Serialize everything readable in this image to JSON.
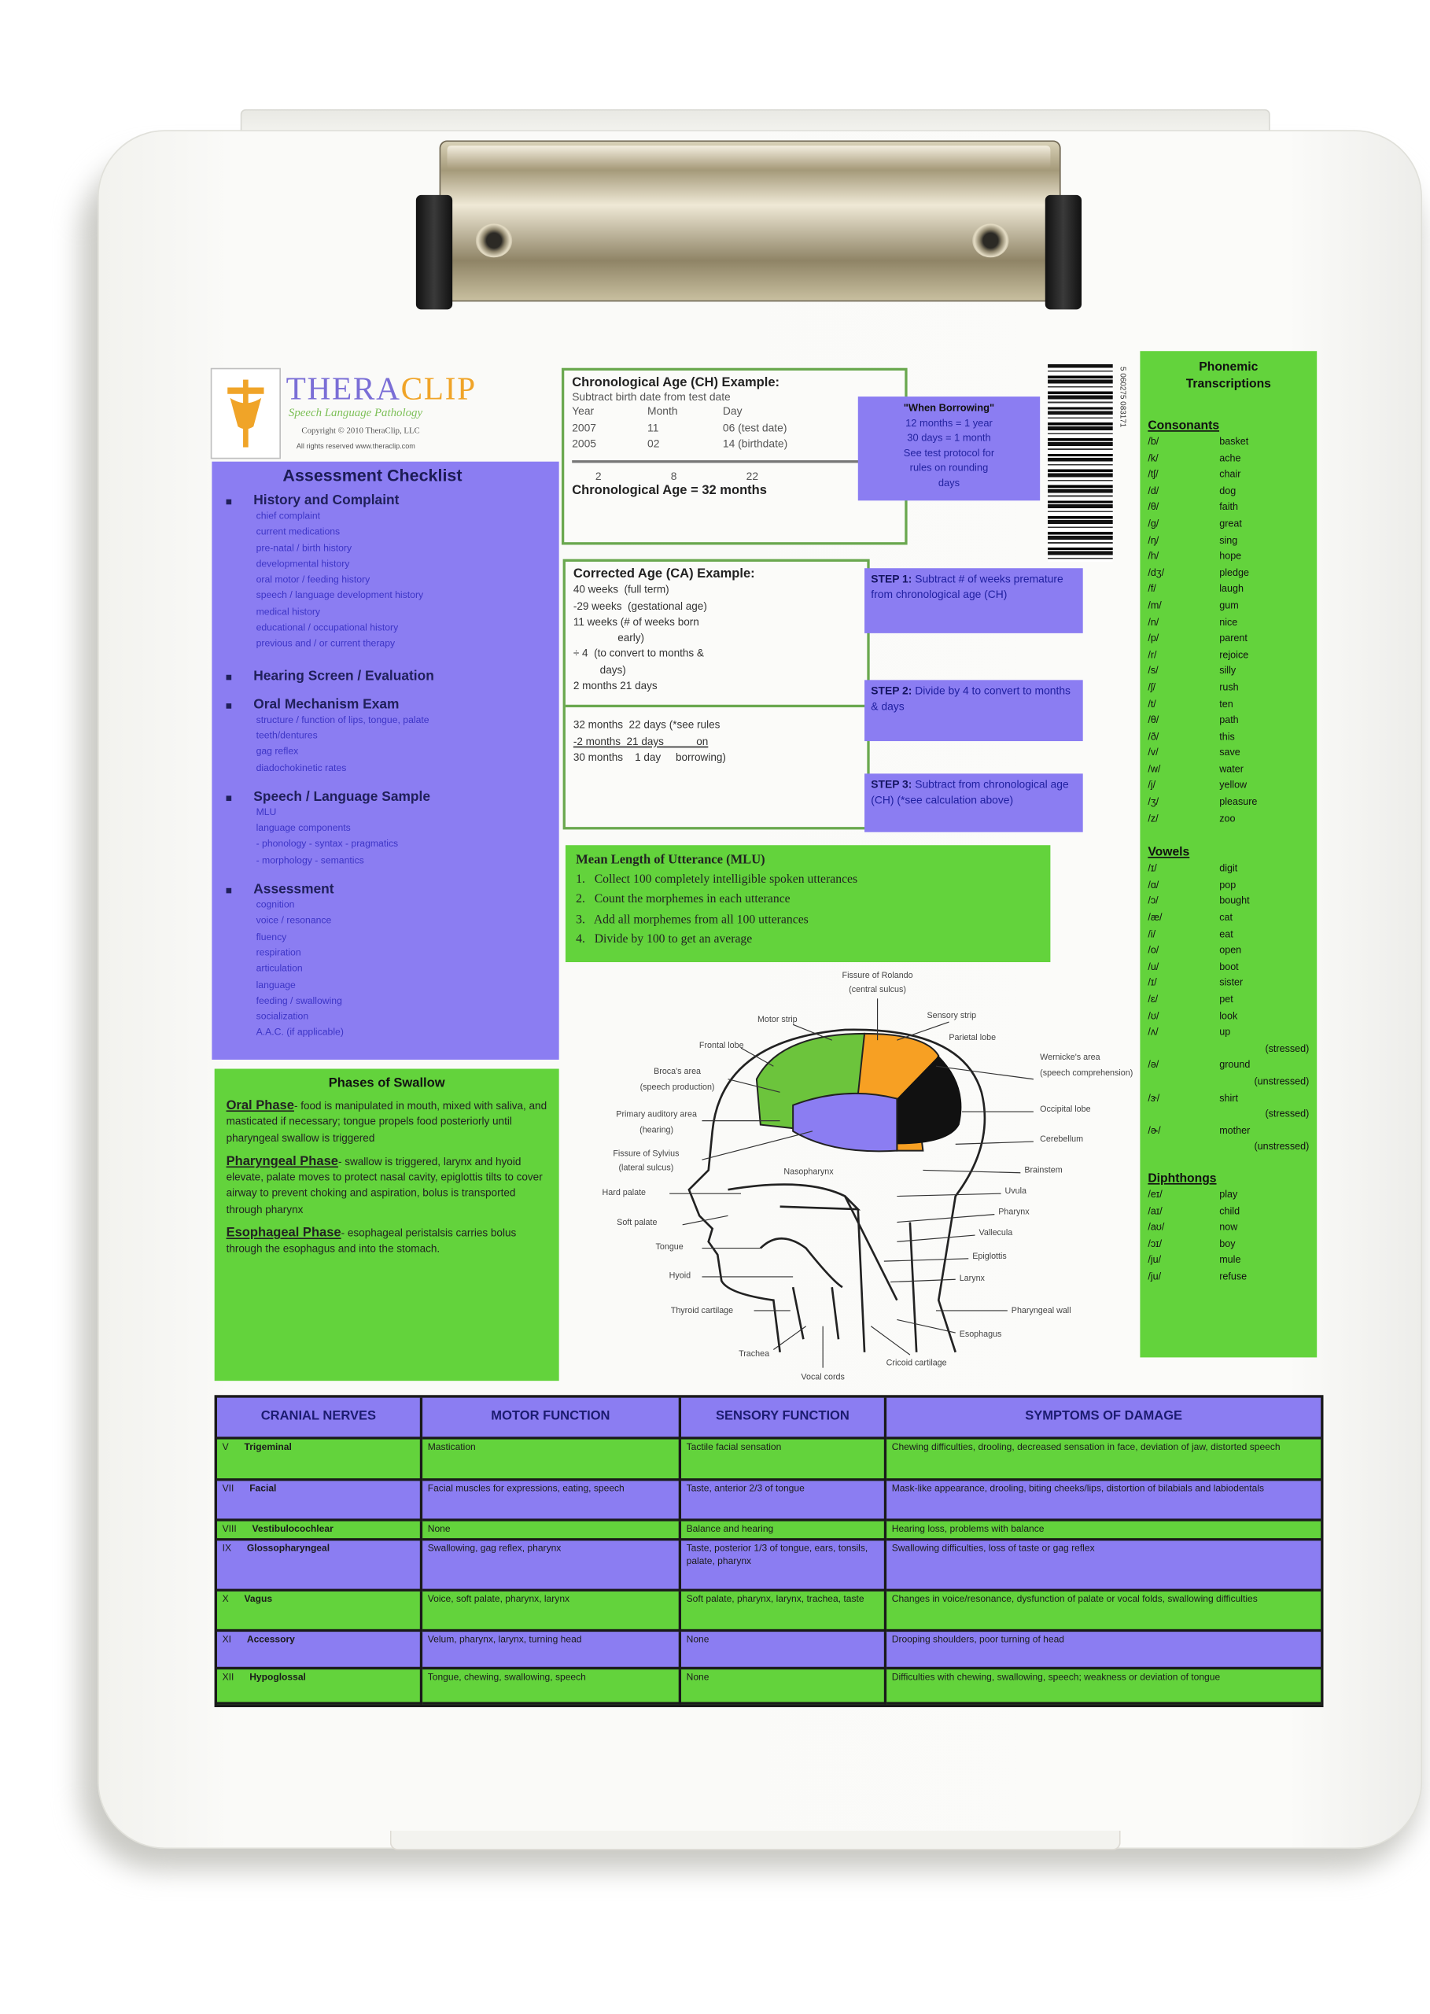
{
  "logo": {
    "name_part1": "THERA",
    "name_part2": "CLIP",
    "subtitle": "Speech Language Pathology",
    "copyright": "Copyright © 2010 TheraClip, LLC",
    "rights": "All rights reserved www.theraclip.com"
  },
  "colors": {
    "purple": "#8b7df2",
    "green": "#63d33c",
    "logo_purple": "#7a6ed6",
    "logo_orange": "#f0a428"
  },
  "checklist": {
    "title": "Assessment Checklist",
    "sections": [
      {
        "heading": "History and Complaint",
        "items": [
          "chief complaint",
          "current medications",
          "pre-natal / birth history",
          "developmental history",
          "oral motor / feeding history",
          "speech / language development history",
          "medical history",
          "educational / occupational history",
          "previous and / or current therapy"
        ]
      },
      {
        "heading": "Hearing Screen / Evaluation",
        "items": []
      },
      {
        "heading": "Oral Mechanism Exam",
        "items": [
          "structure / function of lips, tongue, palate",
          "teeth/dentures",
          "gag reflex",
          "diadochokinetic rates"
        ]
      },
      {
        "heading": "Speech / Language Sample",
        "items": [
          "MLU",
          "language components",
          "- phonology      - syntax       - pragmatics",
          "- morphology    - semantics"
        ]
      },
      {
        "heading": "Assessment",
        "items": [
          "cognition",
          "voice / resonance",
          "fluency",
          "respiration",
          "articulation",
          "language",
          "feeding / swallowing",
          "socialization",
          "A.A.C. (if applicable)"
        ]
      }
    ]
  },
  "swallow": {
    "title": "Phases of Swallow",
    "phases": [
      {
        "name": "Oral Phase",
        "text": "- food is manipulated in mouth, mixed with saliva, and masticated if necessary; tongue propels food posteriorly until pharyngeal swallow is triggered"
      },
      {
        "name": "Pharyngeal Phase",
        "text": "- swallow is triggered, larynx and hyoid elevate, palate moves to protect nasal cavity, epiglottis tilts to cover airway to prevent choking and aspiration, bolus is transported through pharynx"
      },
      {
        "name": "Esophageal Phase",
        "text": "- esophageal peristalsis carries bolus through the esophagus and into the stomach."
      }
    ]
  },
  "chronological": {
    "title": "Chronological Age (CH) Example:",
    "instruction": "Subtract birth date from test date",
    "headers": [
      "Year",
      "Month",
      "Day"
    ],
    "rows": [
      [
        "2007",
        "11",
        "06  (test date)"
      ],
      [
        "2005",
        "02",
        "14  (birthdate)"
      ]
    ],
    "result_row": [
      "2",
      "8",
      "22"
    ],
    "result": "Chronological Age = 32 months"
  },
  "borrowing": {
    "title": "\"When Borrowing\"",
    "lines": [
      "12 months = 1 year",
      "30 days = 1 month",
      "See test protocol for",
      "rules on  rounding",
      "days"
    ]
  },
  "barcode_digits": "5 060275 083171",
  "corrected": {
    "title": "Corrected Age (CA) Example:",
    "lines": [
      "40 weeks  (full term)",
      "-29 weeks  (gestational age)",
      "11 weeks (# of weeks born",
      "               early)",
      "÷ 4  (to convert to months &",
      "         days)",
      "2 months 21 days"
    ],
    "calc_lines": [
      "32 months  22 days (*see rules",
      "-2 months  21 days           on",
      "30 months    1 day     borrowing)"
    ]
  },
  "steps": [
    {
      "label": "STEP 1:",
      "text": "Subtract # of weeks premature from chronological age (CH)"
    },
    {
      "label": "STEP 2:",
      "text": "Divide by 4 to convert to months & days"
    },
    {
      "label": "STEP 3:",
      "text": "Subtract from chronological age (CH) (*see calculation above)"
    }
  ],
  "mlu": {
    "title": "Mean Length of Utterance (MLU)",
    "steps": [
      "1.   Collect 100 completely intelligible spoken utterances",
      "2.   Count the morphemes in each utterance",
      "3.   Add all morphemes from all 100 utterances",
      "4.   Divide by 100 to get an average"
    ]
  },
  "diagram": {
    "labels": {
      "rolando1": "Fissure of Rolando",
      "rolando2": "(central sulcus)",
      "motor": "Motor strip",
      "sensory": "Sensory strip",
      "parietal": "Parietal lobe",
      "frontal": "Frontal lobe",
      "wernicke1": "Wernicke's area",
      "wernicke2": "(speech comprehension)",
      "broca1": "Broca's area",
      "broca2": "(speech production)",
      "occipital": "Occipital lobe",
      "auditory1": "Primary auditory area",
      "auditory2": "(hearing)",
      "cerebellum": "Cerebellum",
      "sylvius1": "Fissure of Sylvius",
      "sylvius2": "(lateral sulcus)",
      "nasopharynx": "Nasopharynx",
      "brainstem": "Brainstem",
      "hard_palate": "Hard palate",
      "uvula": "Uvula",
      "soft_palate": "Soft palate",
      "pharynx": "Pharynx",
      "tongue": "Tongue",
      "vallecula": "Vallecula",
      "hyoid": "Hyoid",
      "epiglottis": "Epiglottis",
      "larynx": "Larynx",
      "thyroid": "Thyroid cartilage",
      "pharyngeal_wall": "Pharyngeal wall",
      "esophagus": "Esophagus",
      "trachea": "Trachea",
      "cricoid": "Cricoid cartilage",
      "vocal_cords": "Vocal cords"
    },
    "region_colors": {
      "frontal": "#6cc43c",
      "parietal": "#f7a023",
      "occipital": "#111111",
      "temporal": "#8b7df2"
    }
  },
  "phonemic": {
    "title_line1": "Phonemic",
    "title_line2": "Transcriptions",
    "groups": [
      {
        "heading": "Consonants",
        "entries": [
          [
            "/b/",
            "basket"
          ],
          [
            "/k/",
            "ache"
          ],
          [
            "/tʃ/",
            "chair"
          ],
          [
            "/d/",
            "dog"
          ],
          [
            "/θ/",
            "faith"
          ],
          [
            "/g/",
            "great"
          ],
          [
            "/ŋ/",
            "sing"
          ],
          [
            "/h/",
            "hope"
          ],
          [
            "/dʒ/",
            "pledge"
          ],
          [
            "/f/",
            "laugh"
          ],
          [
            "/m/",
            "gum"
          ],
          [
            "/n/",
            "nice"
          ],
          [
            "/p/",
            "parent"
          ],
          [
            "/r/",
            "rejoice"
          ],
          [
            "/s/",
            "silly"
          ],
          [
            "/ʃ/",
            "rush"
          ],
          [
            "/t/",
            "ten"
          ],
          [
            "/θ/",
            "path"
          ],
          [
            "/ð/",
            "this"
          ],
          [
            "/v/",
            "save"
          ],
          [
            "/w/",
            "water"
          ],
          [
            "/j/",
            "yellow"
          ],
          [
            "/ʒ/",
            "pleasure"
          ],
          [
            "/z/",
            "zoo"
          ]
        ]
      },
      {
        "heading": "Vowels",
        "entries": [
          [
            "/ɪ/",
            "digit"
          ],
          [
            "/ɑ/",
            "pop"
          ],
          [
            "/ɔ/",
            "bought"
          ],
          [
            "/æ/",
            "cat"
          ],
          [
            "/i/",
            "eat"
          ],
          [
            "/o/",
            "open"
          ],
          [
            "/u/",
            "boot"
          ],
          [
            "/ɪ/",
            "sister"
          ],
          [
            "/ɛ/",
            "pet"
          ],
          [
            "/ʊ/",
            "look"
          ],
          [
            "/ʌ/",
            "up",
            "(stressed)"
          ],
          [
            "/ə/",
            "ground",
            "(unstressed)"
          ],
          [
            "/ɝ/",
            "shirt",
            "(stressed)"
          ],
          [
            "/ɚ/",
            "mother",
            "(unstressed)"
          ]
        ]
      },
      {
        "heading": "Diphthongs",
        "entries": [
          [
            "/eɪ/",
            "play"
          ],
          [
            "/aɪ/",
            "child"
          ],
          [
            "/aʊ/",
            "now"
          ],
          [
            "/ɔɪ/",
            "boy"
          ],
          [
            "/ju/",
            "mule"
          ],
          [
            "/ju/",
            "refuse"
          ]
        ]
      }
    ]
  },
  "cranial_table": {
    "headers": [
      "CRANIAL NERVES",
      "MOTOR FUNCTION",
      "SENSORY FUNCTION",
      "SYMPTOMS OF DAMAGE"
    ],
    "rows": [
      {
        "num": "V",
        "nerve": "Trigeminal",
        "motor": "Mastication",
        "sensory": "Tactile facial sensation",
        "symptoms": "Chewing difficulties, drooling, decreased sensation in face, deviation of jaw, distorted speech"
      },
      {
        "num": "VII",
        "nerve": "Facial",
        "motor": "Facial muscles for expressions, eating, speech",
        "sensory": "Taste, anterior 2/3 of tongue",
        "symptoms": "Mask-like appearance, drooling, biting cheeks/lips, distortion of bilabials and labiodentals"
      },
      {
        "num": "VIII",
        "nerve": "Vestibulocochlear",
        "motor": "None",
        "sensory": "Balance and hearing",
        "symptoms": "Hearing loss, problems with balance"
      },
      {
        "num": "IX",
        "nerve": "Glossopharyngeal",
        "motor": "Swallowing, gag reflex, pharynx",
        "sensory": "Taste, posterior 1/3 of tongue, ears, tonsils, palate, pharynx",
        "symptoms": "Swallowing difficulties, loss of taste or gag reflex"
      },
      {
        "num": "X",
        "nerve": "Vagus",
        "motor": "Voice, soft palate, pharynx, larynx",
        "sensory": "Soft palate, pharynx, larynx, trachea, taste",
        "symptoms": "Changes in voice/resonance, dysfunction of palate or vocal folds, swallowing difficulties"
      },
      {
        "num": "XI",
        "nerve": "Accessory",
        "motor": "Velum, pharynx, larynx, turning head",
        "sensory": "None",
        "symptoms": "Drooping shoulders, poor turning of head"
      },
      {
        "num": "XII",
        "nerve": "Hypoglossal",
        "motor": "Tongue, chewing, swallowing, speech",
        "sensory": "None",
        "symptoms": "Difficulties with chewing, swallowing, speech; weakness or deviation of tongue"
      }
    ]
  }
}
